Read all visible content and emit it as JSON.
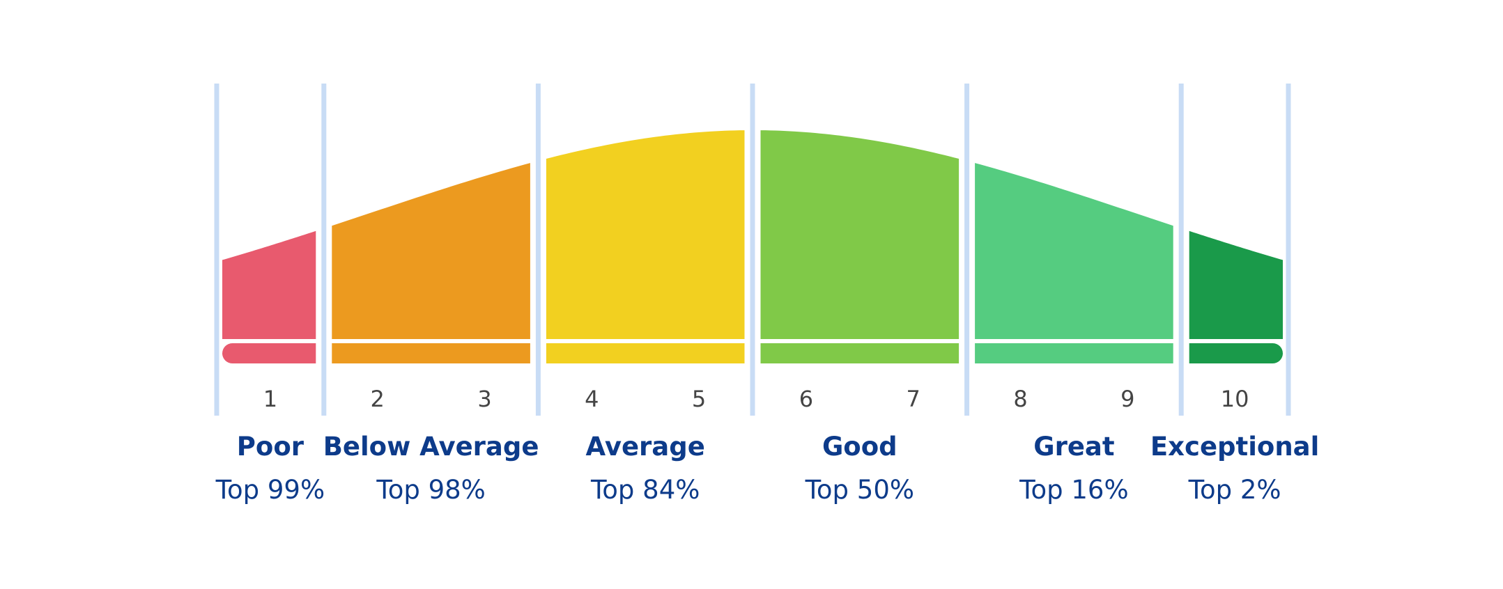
{
  "chart_data": {
    "type": "area",
    "title": "",
    "xlabel": "",
    "ylabel": "",
    "grid": false,
    "legend": "none",
    "scale_ticks": [
      "1",
      "2",
      "3",
      "4",
      "5",
      "6",
      "7",
      "8",
      "9",
      "10"
    ],
    "divider_color": "#c8dcf5",
    "band_gap_color": "#ffffff",
    "bands": [
      {
        "category": "Poor",
        "percentile": "Top 99%",
        "color": "#e85a6e",
        "ticks": [
          "1"
        ]
      },
      {
        "category": "Below Average",
        "percentile": "Top 98%",
        "color": "#ec9a1f",
        "ticks": [
          "2",
          "3"
        ]
      },
      {
        "category": "Average",
        "percentile": "Top 84%",
        "color": "#f2d020",
        "ticks": [
          "4",
          "5"
        ]
      },
      {
        "category": "Good",
        "percentile": "Top 50%",
        "color": "#80c948",
        "ticks": [
          "6",
          "7"
        ]
      },
      {
        "category": "Great",
        "percentile": "Top 16%",
        "color": "#55cc80",
        "ticks": [
          "8",
          "9"
        ]
      },
      {
        "category": "Exceptional",
        "percentile": "Top 2%",
        "color": "#1a9a4a",
        "ticks": [
          "10"
        ]
      }
    ]
  }
}
